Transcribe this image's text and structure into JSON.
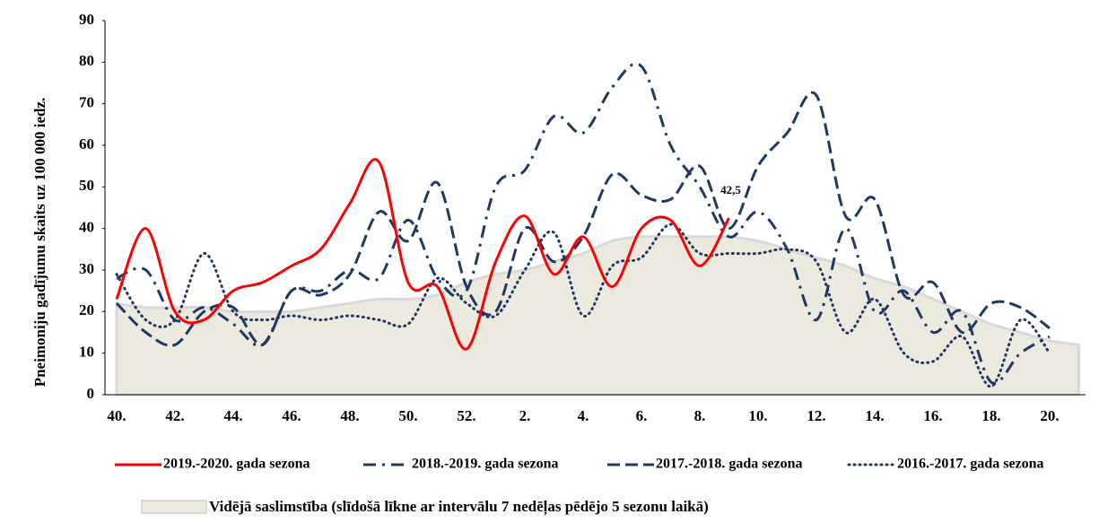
{
  "chart_data": {
    "type": "line",
    "y_label": "Pneimoniju gadījumu skaits uz 100 000 iedz.",
    "categories": [
      "40.",
      null,
      "42.",
      null,
      "44.",
      null,
      "46.",
      null,
      "48.",
      null,
      "50.",
      null,
      "52.",
      null,
      "2.",
      null,
      "4.",
      null,
      "6.",
      null,
      "8.",
      null,
      "10.",
      null,
      "12.",
      null,
      "14.",
      null,
      "16.",
      null,
      "18.",
      null,
      "20.",
      null
    ],
    "ylim": [
      0,
      90
    ],
    "yticks": [
      0,
      10,
      20,
      30,
      40,
      50,
      60,
      70,
      80,
      90
    ],
    "area": {
      "name": "Vidējā saslimstība (slīdošā līkne ar intervālu 7 nedēļas pēdējo 5 sezonu laikā)",
      "color": "#ece9df",
      "values": [
        22,
        21,
        21,
        21,
        20,
        20,
        20,
        21,
        22,
        23,
        23,
        24,
        27,
        29,
        30,
        32,
        34,
        37,
        38,
        38,
        38,
        38,
        37,
        35,
        33,
        31,
        28,
        26,
        23,
        20,
        17,
        15,
        13,
        12
      ]
    },
    "series": [
      {
        "name": "2019.-2020. gada sezona",
        "color": "#ff0000",
        "style": "solid",
        "values": [
          23,
          40,
          20,
          18,
          25,
          27,
          31,
          35,
          46,
          56,
          27,
          26,
          11,
          32,
          43,
          29,
          38,
          26,
          40,
          42,
          31,
          42.5,
          null,
          null,
          null,
          null,
          null,
          null,
          null,
          null,
          null,
          null,
          null,
          null
        ],
        "value_labels": [
          null,
          null,
          null,
          null,
          null,
          null,
          null,
          null,
          null,
          null,
          null,
          null,
          null,
          null,
          null,
          null,
          null,
          null,
          null,
          null,
          null,
          "42,5",
          null,
          null,
          null,
          null,
          null,
          null,
          null,
          null,
          null,
          null,
          null,
          null
        ]
      },
      {
        "name": "2018.-2019. gada sezona",
        "color": "#203864",
        "style": "dashdot",
        "values": [
          28,
          30,
          18,
          21,
          17,
          12,
          25,
          25,
          30,
          28,
          42,
          28,
          25,
          50,
          54,
          67,
          63,
          74,
          79,
          60,
          50,
          38,
          44,
          35,
          18,
          40,
          20,
          25,
          15,
          20,
          3,
          10,
          14,
          null
        ]
      },
      {
        "name": "2017.-2018. gada sezona",
        "color": "#203864",
        "style": "dashed",
        "values": [
          22,
          15,
          12,
          20,
          21,
          12,
          25,
          24,
          29,
          44,
          37,
          51,
          26,
          20,
          40,
          32,
          38,
          53,
          48,
          47,
          55,
          40,
          55,
          63,
          72,
          43,
          47,
          24,
          27,
          15,
          22,
          21,
          16,
          null
        ]
      },
      {
        "name": "2016.-2017. gada sezona",
        "color": "#203864",
        "style": "dotted",
        "values": [
          29,
          18,
          18,
          34,
          20,
          18,
          19,
          18,
          19,
          18,
          17,
          28,
          22,
          19,
          30,
          39,
          19,
          31,
          33,
          41,
          34,
          34,
          34,
          35,
          32,
          15,
          23,
          10,
          8,
          14,
          2,
          18,
          10,
          null
        ]
      }
    ]
  }
}
